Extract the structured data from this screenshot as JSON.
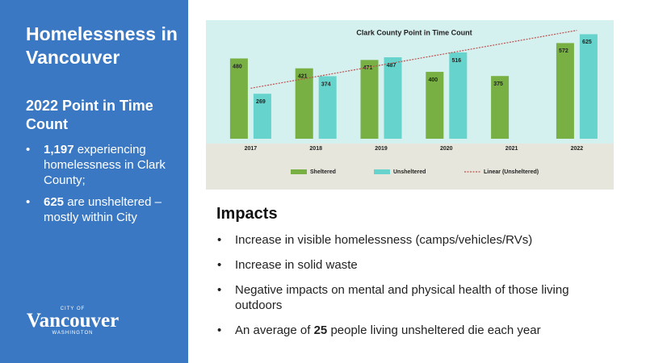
{
  "sidebar": {
    "title": "Homelessness in Vancouver",
    "subtitle": "2022 Point in Time Count",
    "bullets": [
      {
        "bold": "1,197",
        "text": "experiencing homelessness in Clark County;"
      },
      {
        "bold": "625",
        "text": "are unsheltered – mostly within City"
      }
    ],
    "logo": {
      "top": "CITY OF",
      "name": "Vancouver",
      "bottom": "WASHINGTON"
    }
  },
  "chart_data": {
    "type": "bar",
    "title": "Clark County Point in Time Count",
    "categories": [
      "2017",
      "2018",
      "2019",
      "2020",
      "2021",
      "2022"
    ],
    "series": [
      {
        "name": "Sheltered",
        "color": "#78b043",
        "values": [
          480,
          421,
          471,
          400,
          375,
          572
        ]
      },
      {
        "name": "Unsheltered",
        "color": "#66d4cc",
        "values": [
          269,
          374,
          487,
          516,
          null,
          625
        ]
      }
    ],
    "trendline": {
      "name": "Linear (Unsheltered)",
      "color": "#c0504d",
      "series": "Unsheltered"
    },
    "ylim": [
      0,
      680
    ]
  },
  "impacts": {
    "heading": "Impacts",
    "bullets": [
      "Increase in visible homelessness (camps/vehicles/RVs)",
      "Increase in solid waste",
      "Negative impacts on mental and physical health of those living outdoors"
    ],
    "last_bullet": {
      "before": "An average of",
      "bold": "25",
      "after": "people living unsheltered die each year"
    }
  }
}
